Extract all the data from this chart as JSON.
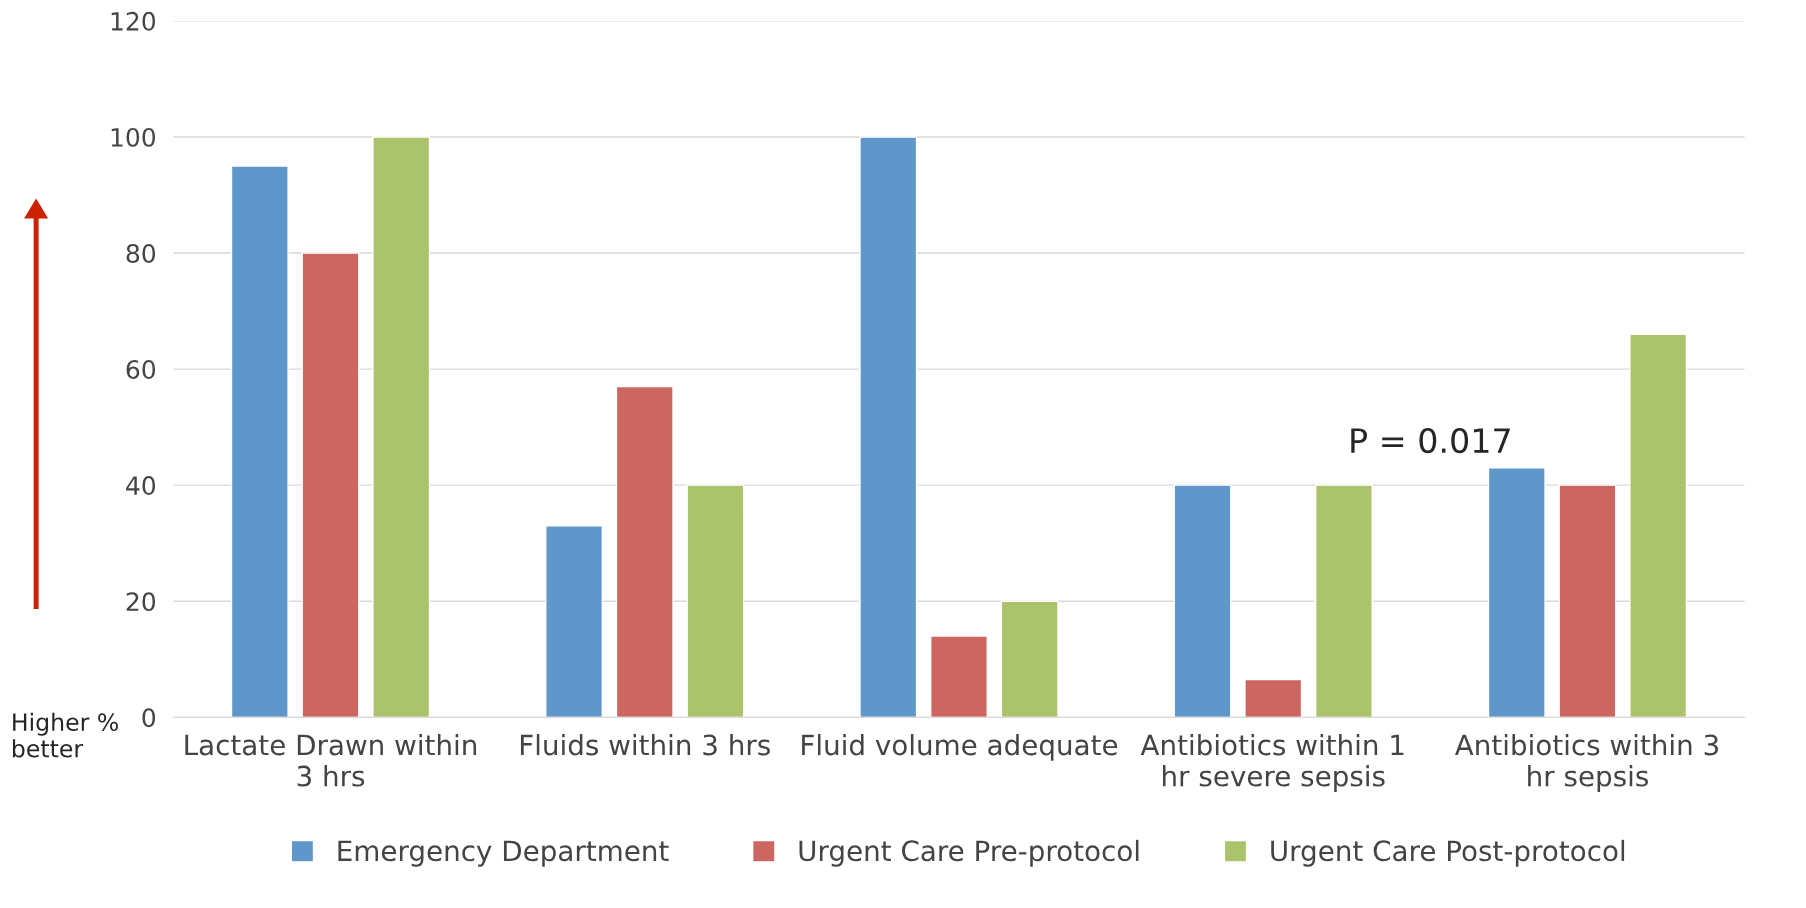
{
  "chart_data": {
    "type": "bar",
    "categories": [
      "Lactate Drawn within 3 hrs",
      "Fluids within 3 hrs",
      "Fluid volume adequate",
      "Antibiotics within 1 hr severe sepsis",
      "Antibiotics within 3 hr sepsis"
    ],
    "series": [
      {
        "name": "Emergency Department",
        "color": "#6097ca",
        "values": [
          95,
          33,
          100,
          40,
          43
        ]
      },
      {
        "name": "Urgent Care Pre-protocol",
        "color": "#cd6560",
        "values": [
          80,
          57,
          14,
          6.5,
          40
        ]
      },
      {
        "name": "Urgent Care Post-protocol",
        "color": "#abc46c",
        "values": [
          100,
          40,
          20,
          40,
          66
        ]
      }
    ],
    "ylim": [
      0,
      120
    ],
    "yticks": [
      0,
      20,
      40,
      60,
      80,
      100,
      120
    ],
    "grid": "y",
    "legend": "bottom",
    "annotations": [
      "P = 0.017",
      "Higher % better"
    ]
  }
}
